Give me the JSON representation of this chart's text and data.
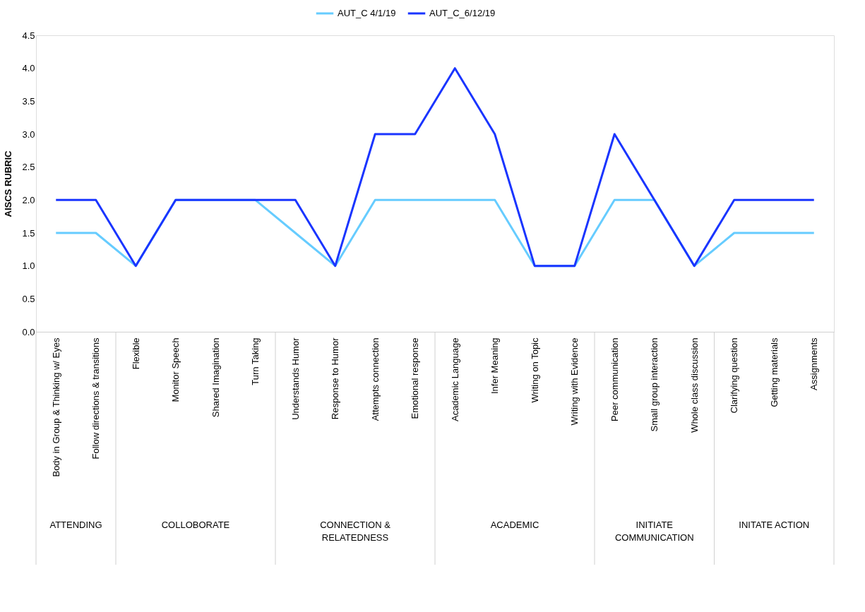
{
  "chart_data": {
    "type": "line",
    "ylabel": "AISCS RUBRIC",
    "categories": [
      "Body in Group & Thinking w/ Eyes",
      "Follow directions & transitions",
      "Flexible",
      "Monitor Speech",
      "Shared Imagination",
      "Turn Taking",
      "Understands Humor",
      "Response to Humor",
      "Attempts connection",
      "Emotional response",
      "Academic Language",
      "Infer Meaning",
      "Writing on Topic",
      "Writing with Evidence",
      "Peer communication",
      "Small group interaction",
      "Whole class discussion",
      "Clarifying question",
      "Getting materials",
      "Assignments"
    ],
    "series": [
      {
        "name": "AUT_C 4/1/19",
        "color": "#66ccff",
        "values": [
          1.5,
          1.5,
          1,
          2,
          2,
          2,
          1.5,
          1,
          2,
          2,
          2,
          2,
          1,
          1,
          2,
          2,
          1,
          1.5,
          1.5,
          1.5
        ]
      },
      {
        "name": "AUT_C_6/12/19",
        "color": "#1a35ff",
        "values": [
          2,
          2,
          1,
          2,
          2,
          2,
          2,
          1,
          3,
          3,
          4,
          3,
          1,
          1,
          3,
          2,
          1,
          2,
          2,
          2
        ]
      }
    ],
    "ylim": [
      0,
      4.5
    ],
    "yticks": [
      {
        "value": 0,
        "label": "0.0"
      },
      {
        "value": 0.5,
        "label": "0.5"
      },
      {
        "value": 1,
        "label": "1.0"
      },
      {
        "value": 1.5,
        "label": "1.5"
      },
      {
        "value": 2,
        "label": "2.0"
      },
      {
        "value": 2.5,
        "label": "2.5"
      },
      {
        "value": 3,
        "label": "3.0"
      },
      {
        "value": 3.5,
        "label": "3.5"
      },
      {
        "value": 4,
        "label": "4.0"
      },
      {
        "value": 4.5,
        "label": "4.5"
      }
    ],
    "grid": false,
    "legend": "top",
    "marker": "none",
    "line_style": "solid",
    "annotations": [
      "ATTENDING",
      "COLLOBORATE",
      "CONNECTION &\nRELATEDNESS",
      "ACADEMIC",
      "INITIATE\nCOMMUNICATION",
      "INITATE ACTION"
    ]
  }
}
